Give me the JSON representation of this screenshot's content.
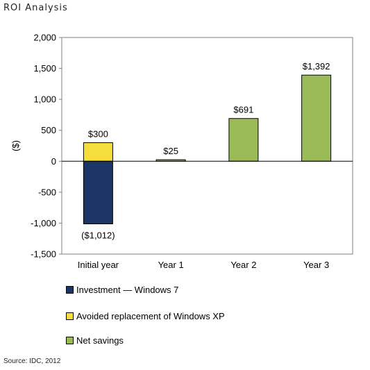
{
  "page_title": "ROI Analysis",
  "source": "Source: IDC, 2012",
  "chart_data": {
    "type": "bar",
    "stacked": true,
    "categories": [
      "Initial year",
      "Year 1",
      "Year 2",
      "Year 3"
    ],
    "ylabel": "($)",
    "ylim": [
      -1500,
      2000
    ],
    "yticks": [
      2000,
      1500,
      1000,
      500,
      0,
      -500,
      -1000,
      -1500
    ],
    "ytick_labels": [
      "2,000",
      "1,500",
      "1,000",
      "500",
      "0",
      "-500",
      "-1,000",
      "-1,500"
    ],
    "grid": false,
    "legend_position": "bottom-left",
    "series": [
      {
        "name": "Investment — Windows 7",
        "color": "#1b3566",
        "values": [
          -1012,
          0,
          0,
          0
        ]
      },
      {
        "name": "Avoided replacement of Windows XP",
        "color": "#f5dd3c",
        "values": [
          300,
          0,
          0,
          0
        ]
      },
      {
        "name": "Net savings",
        "color": "#9bbb59",
        "values": [
          0,
          25,
          691,
          1392
        ]
      }
    ],
    "data_labels": [
      {
        "category": "Initial year",
        "value": 300,
        "text": "$300"
      },
      {
        "category": "Initial year",
        "value": -1012,
        "text": "($1,012)"
      },
      {
        "category": "Year 1",
        "value": 25,
        "text": "$25"
      },
      {
        "category": "Year 2",
        "value": 691,
        "text": "$691"
      },
      {
        "category": "Year 3",
        "value": 1392,
        "text": "$1,392"
      }
    ]
  }
}
